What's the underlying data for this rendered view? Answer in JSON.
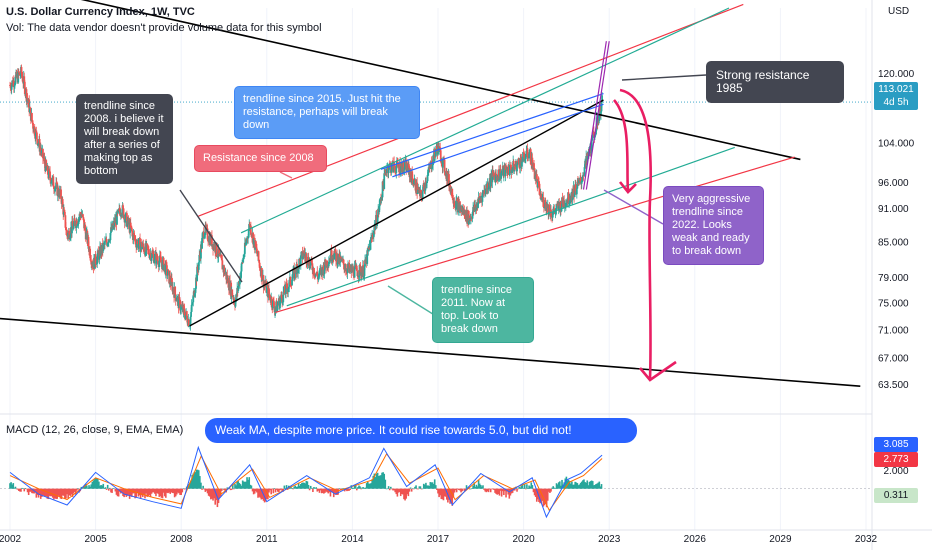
{
  "header": {
    "title": "U.S. Dollar Currency Index, 1W, TVC",
    "volume_note": "Vol: The data vendor doesn't provide volume data for this symbol",
    "macd_label": "MACD (12, 26, close, 9, EMA, EMA)"
  },
  "axis": {
    "unit": "USD"
  },
  "price_badge": {
    "value": "113.021",
    "countdown": "4d 5h"
  },
  "macd_badges": {
    "macd": "3.085",
    "signal": "2.773",
    "hist": "0.311",
    "level": "2.000"
  },
  "annotations": {
    "strong_resistance": "Strong resistance 1985",
    "trend_2008": "trendline since 2008. i believe it will break down after a series of making top as bottom",
    "resistance_2008": "Resistance since 2008",
    "trend_2015": "trendline since 2015. Just hit the resistance, perhaps will break down",
    "trend_2011": "trendline since 2011. Now at top. Look to break down",
    "trend_2022": "Very aggressive trendline since 2022. Looks weak and ready to break down",
    "weak_ma": "Weak MA, despite more price. It could rise towards 5.0, but did not!"
  },
  "colors": {
    "up": "#26a69a",
    "down": "#ef5350",
    "red_line": "#f23645",
    "green_line": "#22ab94",
    "blue_line": "#2962ff",
    "magenta": "#e91e63",
    "purple": "#9c27b0",
    "macd_line": "#2962ff",
    "signal_line": "#ff6d00"
  },
  "chart_data": [
    {
      "type": "candlestick",
      "title": "U.S. Dollar Currency Index, 1W, TVC",
      "ylabel": "USD",
      "y_scale": "log",
      "ylim": [
        60.2,
        137
      ],
      "y_ticks": [
        120.0,
        113.021,
        104.0,
        96.0,
        91.0,
        85.0,
        79.0,
        75.0,
        71.0,
        67.0,
        63.5
      ],
      "x_ticks": [
        "2002",
        "2005",
        "2008",
        "2011",
        "2014",
        "2017",
        "2020",
        "2023",
        "2026",
        "2029",
        "2032"
      ],
      "xlim": [
        2002.0,
        2032.0
      ],
      "series": [
        {
          "points": [
            [
              2002.0,
              117
            ],
            [
              2002.4,
              120
            ],
            [
              2002.8,
              108
            ],
            [
              2003.3,
              98
            ],
            [
              2003.8,
              93
            ],
            [
              2004.0,
              86
            ],
            [
              2004.5,
              90
            ],
            [
              2004.9,
              81
            ],
            [
              2005.4,
              85
            ],
            [
              2005.9,
              91
            ],
            [
              2006.4,
              85
            ],
            [
              2006.9,
              83
            ],
            [
              2007.4,
              81
            ],
            [
              2007.9,
              75
            ],
            [
              2008.3,
              72
            ],
            [
              2008.8,
              87
            ],
            [
              2009.2,
              84
            ],
            [
              2009.9,
              75
            ],
            [
              2010.4,
              88
            ],
            [
              2010.9,
              78
            ],
            [
              2011.3,
              74
            ],
            [
              2011.8,
              78
            ],
            [
              2012.3,
              83
            ],
            [
              2012.8,
              79
            ],
            [
              2013.3,
              83
            ],
            [
              2013.9,
              80
            ],
            [
              2014.4,
              80
            ],
            [
              2014.9,
              90
            ],
            [
              2015.2,
              99
            ],
            [
              2015.9,
              99
            ],
            [
              2016.4,
              93
            ],
            [
              2016.9,
              102
            ],
            [
              2017.0,
              103
            ],
            [
              2017.6,
              92
            ],
            [
              2018.1,
              89
            ],
            [
              2018.9,
              97
            ],
            [
              2019.7,
              99
            ],
            [
              2020.2,
              102
            ],
            [
              2020.6,
              93
            ],
            [
              2021.0,
              90
            ],
            [
              2021.6,
              93
            ],
            [
              2022.0,
              96
            ],
            [
              2022.4,
              104
            ],
            [
              2022.75,
              113
            ]
          ]
        }
      ],
      "annotations": [
        "Strong resistance 1985",
        "trendline since 2008. i believe it will break down after a series of making top as bottom",
        "Resistance since 2008",
        "trendline since 2015. Just hit the resistance, perhaps will break down",
        "trendline since 2011. Now at top. Look to break down",
        "Very aggressive trendline since 2022. Looks weak and ready to break down"
      ],
      "last_value": 113.021
    },
    {
      "type": "line",
      "title": "MACD (12, 26, close, 9, EMA, EMA)",
      "ylim": [
        -3.8,
        6.5
      ],
      "series": [
        {
          "name": "MACD",
          "values": [
            [
              2002.0,
              1.5
            ],
            [
              2003.0,
              -0.5
            ],
            [
              2004.0,
              -1.5
            ],
            [
              2005.0,
              1.5
            ],
            [
              2006.0,
              -0.5
            ],
            [
              2007.0,
              -1.2
            ],
            [
              2008.0,
              -1.8
            ],
            [
              2008.6,
              3.8
            ],
            [
              2009.3,
              -1.0
            ],
            [
              2010.4,
              2.2
            ],
            [
              2011.0,
              -1.2
            ],
            [
              2012.4,
              1.2
            ],
            [
              2013.4,
              -0.5
            ],
            [
              2014.6,
              1.0
            ],
            [
              2015.1,
              3.7
            ],
            [
              2015.9,
              0.2
            ],
            [
              2016.9,
              2.2
            ],
            [
              2017.5,
              -1.5
            ],
            [
              2018.5,
              1.4
            ],
            [
              2019.5,
              -0.3
            ],
            [
              2020.3,
              1.0
            ],
            [
              2020.8,
              -2.6
            ],
            [
              2021.5,
              0.8
            ],
            [
              2022.0,
              1.4
            ],
            [
              2022.75,
              3.085
            ]
          ]
        },
        {
          "name": "Signal",
          "values": [
            [
              2002.0,
              1.2
            ],
            [
              2003.0,
              0.0
            ],
            [
              2004.0,
              -1.0
            ],
            [
              2005.0,
              1.0
            ],
            [
              2006.0,
              0.0
            ],
            [
              2007.0,
              -0.8
            ],
            [
              2008.0,
              -1.4
            ],
            [
              2008.7,
              3.0
            ],
            [
              2009.4,
              -0.5
            ],
            [
              2010.5,
              1.8
            ],
            [
              2011.1,
              -0.8
            ],
            [
              2012.5,
              1.0
            ],
            [
              2013.5,
              -0.2
            ],
            [
              2014.7,
              0.8
            ],
            [
              2015.2,
              3.2
            ],
            [
              2016.0,
              0.5
            ],
            [
              2017.0,
              1.9
            ],
            [
              2017.6,
              -1.0
            ],
            [
              2018.6,
              1.2
            ],
            [
              2019.6,
              0.0
            ],
            [
              2020.4,
              0.8
            ],
            [
              2020.9,
              -2.0
            ],
            [
              2021.6,
              0.6
            ],
            [
              2022.1,
              1.2
            ],
            [
              2022.75,
              2.773
            ]
          ]
        }
      ],
      "last_values": {
        "MACD": 3.085,
        "Signal": 2.773,
        "Histogram": 0.311
      }
    }
  ]
}
